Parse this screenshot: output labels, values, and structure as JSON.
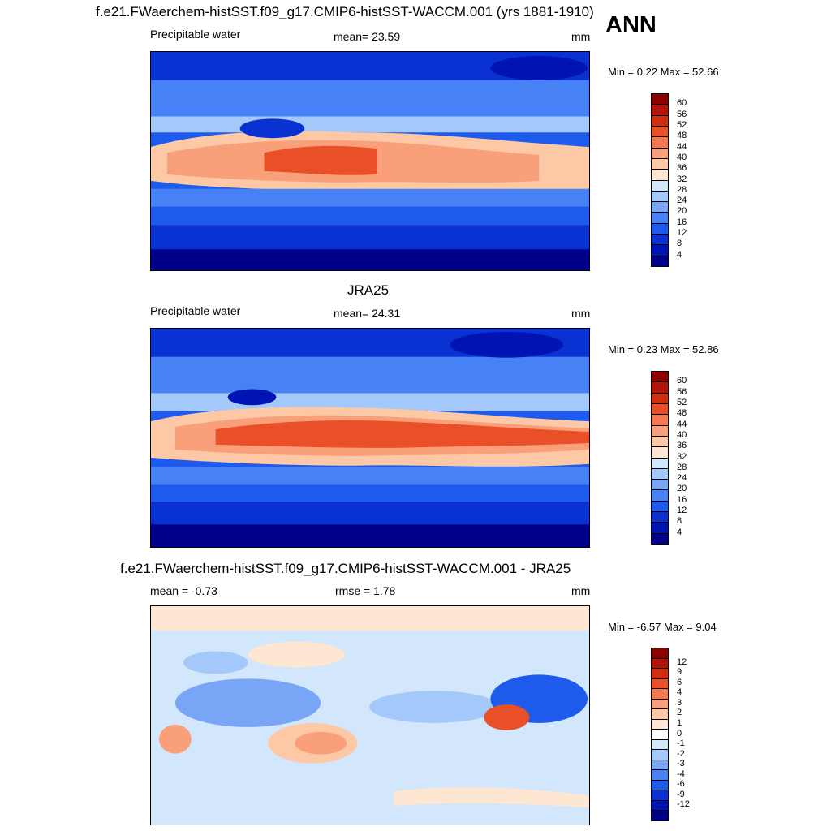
{
  "ann_label": "ANN",
  "palettes": {
    "abs": [
      "#00008a",
      "#0014b4",
      "#0a32d2",
      "#1e5aeb",
      "#4682f5",
      "#78a5f5",
      "#a5c8fa",
      "#d2e6fc",
      "#fde6d2",
      "#fcc8a5",
      "#f9a07a",
      "#f57850",
      "#ea5028",
      "#d22d0f",
      "#b4140a",
      "#8c0000"
    ],
    "diff": [
      "#00008a",
      "#0014b4",
      "#0a32d2",
      "#1e5aeb",
      "#4682f5",
      "#78a5f5",
      "#a5c8fa",
      "#d2e6fc",
      "#ffffff",
      "#fde6d2",
      "#fcc8a5",
      "#f9a07a",
      "#f57850",
      "#ea5028",
      "#d22d0f",
      "#b4140a",
      "#8c0000"
    ]
  },
  "panels": [
    {
      "title": "f.e21.FWaerchem-histSST.f09_g17.CMIP6-histSST-WACCM.001 (yrs 1881-1910)",
      "left_label": "Precipitable water",
      "center_label": "mean=  23.59",
      "units": "mm",
      "minmax": "Min =   0.22 Max =  52.66",
      "kind": "abs",
      "colorbar_labels": [
        "4",
        "8",
        "12",
        "16",
        "20",
        "24",
        "28",
        "32",
        "36",
        "40",
        "44",
        "48",
        "52",
        "56",
        "60"
      ]
    },
    {
      "title": "JRA25",
      "left_label": "Precipitable water",
      "center_label": "mean=  24.31",
      "units": "mm",
      "minmax": "Min =   0.23 Max =  52.86",
      "kind": "abs",
      "colorbar_labels": [
        "4",
        "8",
        "12",
        "16",
        "20",
        "24",
        "28",
        "32",
        "36",
        "40",
        "44",
        "48",
        "52",
        "56",
        "60"
      ]
    },
    {
      "title": "f.e21.FWaerchem-histSST.f09_g17.CMIP6-histSST-WACCM.001 - JRA25",
      "left_label": "mean =  -0.73",
      "center_label": "rmse =   1.78",
      "units": "mm",
      "minmax": "Min =  -6.57 Max =   9.04",
      "kind": "diff",
      "colorbar_labels": [
        "-12",
        "-9",
        "-6",
        "-4",
        "-3",
        "-2",
        "-1",
        "0",
        "1",
        "2",
        "3",
        "4",
        "6",
        "9",
        "12"
      ]
    }
  ]
}
